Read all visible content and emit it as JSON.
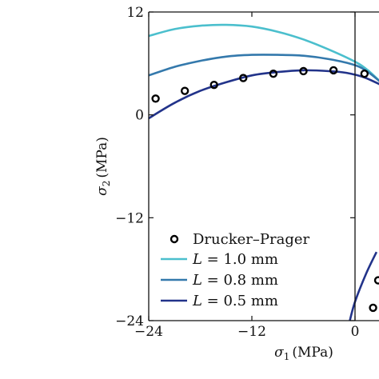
{
  "chart_data": {
    "type": "line",
    "title": "",
    "xlabel": "σ1 (MPa)",
    "ylabel": "σ2 (MPa)",
    "xlim": [
      -24,
      3
    ],
    "ylim": [
      -24,
      12
    ],
    "xticks": [
      -24,
      -12,
      0
    ],
    "xtick_labels": [
      "−24",
      "−12",
      "0"
    ],
    "yticks": [
      12,
      0,
      -12,
      -24
    ],
    "ytick_labels": [
      "12",
      "0",
      "−12",
      "−24"
    ],
    "grid": false,
    "legend_position": "lower-left",
    "series": [
      {
        "name": "Drucker–Prager",
        "kind": "markers",
        "color": "#000000",
        "x": [
          -23.2,
          -19.8,
          -16.4,
          -13.0,
          -9.5,
          -6.0,
          -2.5,
          1.1
        ],
        "y": [
          1.9,
          2.8,
          3.5,
          4.3,
          4.8,
          5.1,
          5.2,
          4.8
        ],
        "extra_x": [
          2.7,
          2.1
        ],
        "extra_y": [
          -19.3,
          -22.5
        ]
      },
      {
        "name": "L = 1.0 mm",
        "label_var": "L",
        "label_rest": " = 1.0 mm",
        "kind": "line",
        "color": "#4bbfcd",
        "x": [
          -24,
          -21,
          -18,
          -15,
          -12,
          -9,
          -6,
          -3,
          0,
          1.5,
          3
        ],
        "y": [
          9.2,
          10.0,
          10.4,
          10.5,
          10.3,
          9.7,
          8.8,
          7.6,
          6.2,
          5.2,
          3.8
        ]
      },
      {
        "name": "L = 0.8 mm",
        "label_var": "L",
        "label_rest": " = 0.8 mm",
        "kind": "line",
        "color": "#3479ac",
        "x": [
          -24,
          -21,
          -18,
          -15,
          -12,
          -9,
          -6,
          -3,
          0,
          1.5,
          3
        ],
        "y": [
          4.6,
          5.6,
          6.3,
          6.8,
          7.0,
          7.0,
          6.9,
          6.5,
          5.8,
          5.0,
          3.8
        ]
      },
      {
        "name": "L = 0.5 mm",
        "label_var": "L",
        "label_rest": " = 0.5 mm",
        "kind": "line",
        "color": "#22338a",
        "x": [
          -24,
          -21,
          -18,
          -15,
          -12,
          -9,
          -6,
          -3,
          -1,
          1,
          3
        ],
        "y": [
          -0.4,
          1.4,
          2.8,
          3.8,
          4.6,
          5.0,
          5.2,
          5.1,
          4.9,
          4.4,
          3.5
        ],
        "extra_x": [
          2.5,
          1.3,
          0.0,
          -0.6
        ],
        "extra_y": [
          -16.0,
          -18.5,
          -21.8,
          -24.0
        ]
      }
    ]
  }
}
